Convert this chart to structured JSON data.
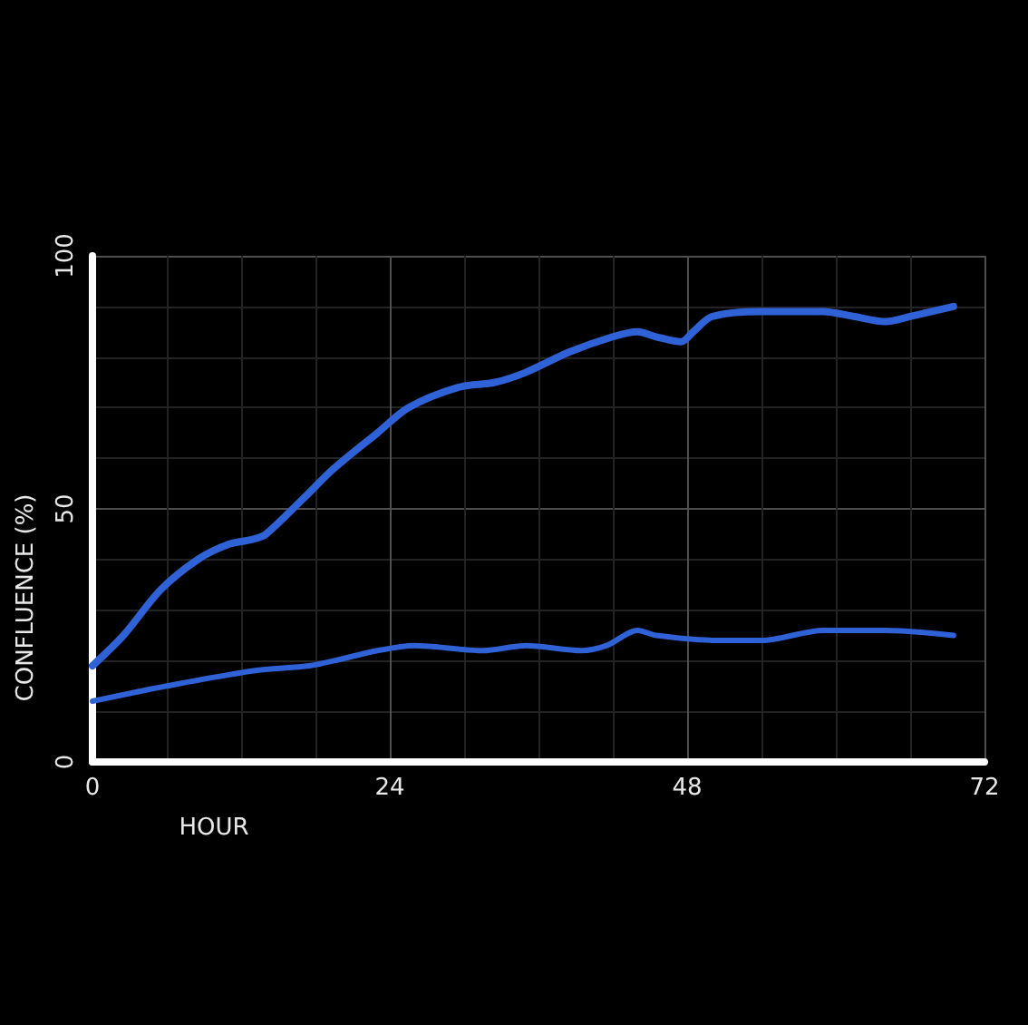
{
  "chart_data": {
    "type": "line",
    "xlabel": "HOUR",
    "ylabel": "CONFLUENCE (%)",
    "xlim": [
      0,
      72
    ],
    "xticks": [
      0,
      24,
      48,
      72
    ],
    "ylim": [
      0,
      100
    ],
    "yticks": [
      0,
      50,
      100
    ],
    "grid": true,
    "marker": "none",
    "series": [
      {
        "color": "#2f62d6",
        "x": [
          0,
          2.5,
          5.5,
          8.5,
          11,
          13,
          14,
          17,
          19.5,
          23,
          25.5,
          29.5,
          32.5,
          35,
          38.5,
          42,
          44,
          45.5,
          47.5,
          48.5,
          50,
          54,
          59,
          61.5,
          64,
          66,
          69.5
        ],
        "values": [
          19,
          25,
          34,
          40,
          43,
          44,
          45,
          52,
          58,
          65,
          70,
          74,
          75,
          77,
          81,
          84,
          85,
          84,
          83,
          85,
          88,
          89,
          89,
          88,
          87,
          88,
          90
        ]
      },
      {
        "color": "#2f62d6",
        "x": [
          0,
          6,
          13,
          17.5,
          19.5,
          23,
          26,
          31.5,
          35,
          39.5,
          41.5,
          44,
          45.5,
          50.5,
          54,
          59,
          64,
          69.5
        ],
        "values": [
          12,
          15,
          18,
          19,
          20,
          22,
          23,
          22,
          23,
          22,
          23,
          26,
          25,
          24,
          24,
          26,
          26,
          25
        ]
      }
    ]
  }
}
